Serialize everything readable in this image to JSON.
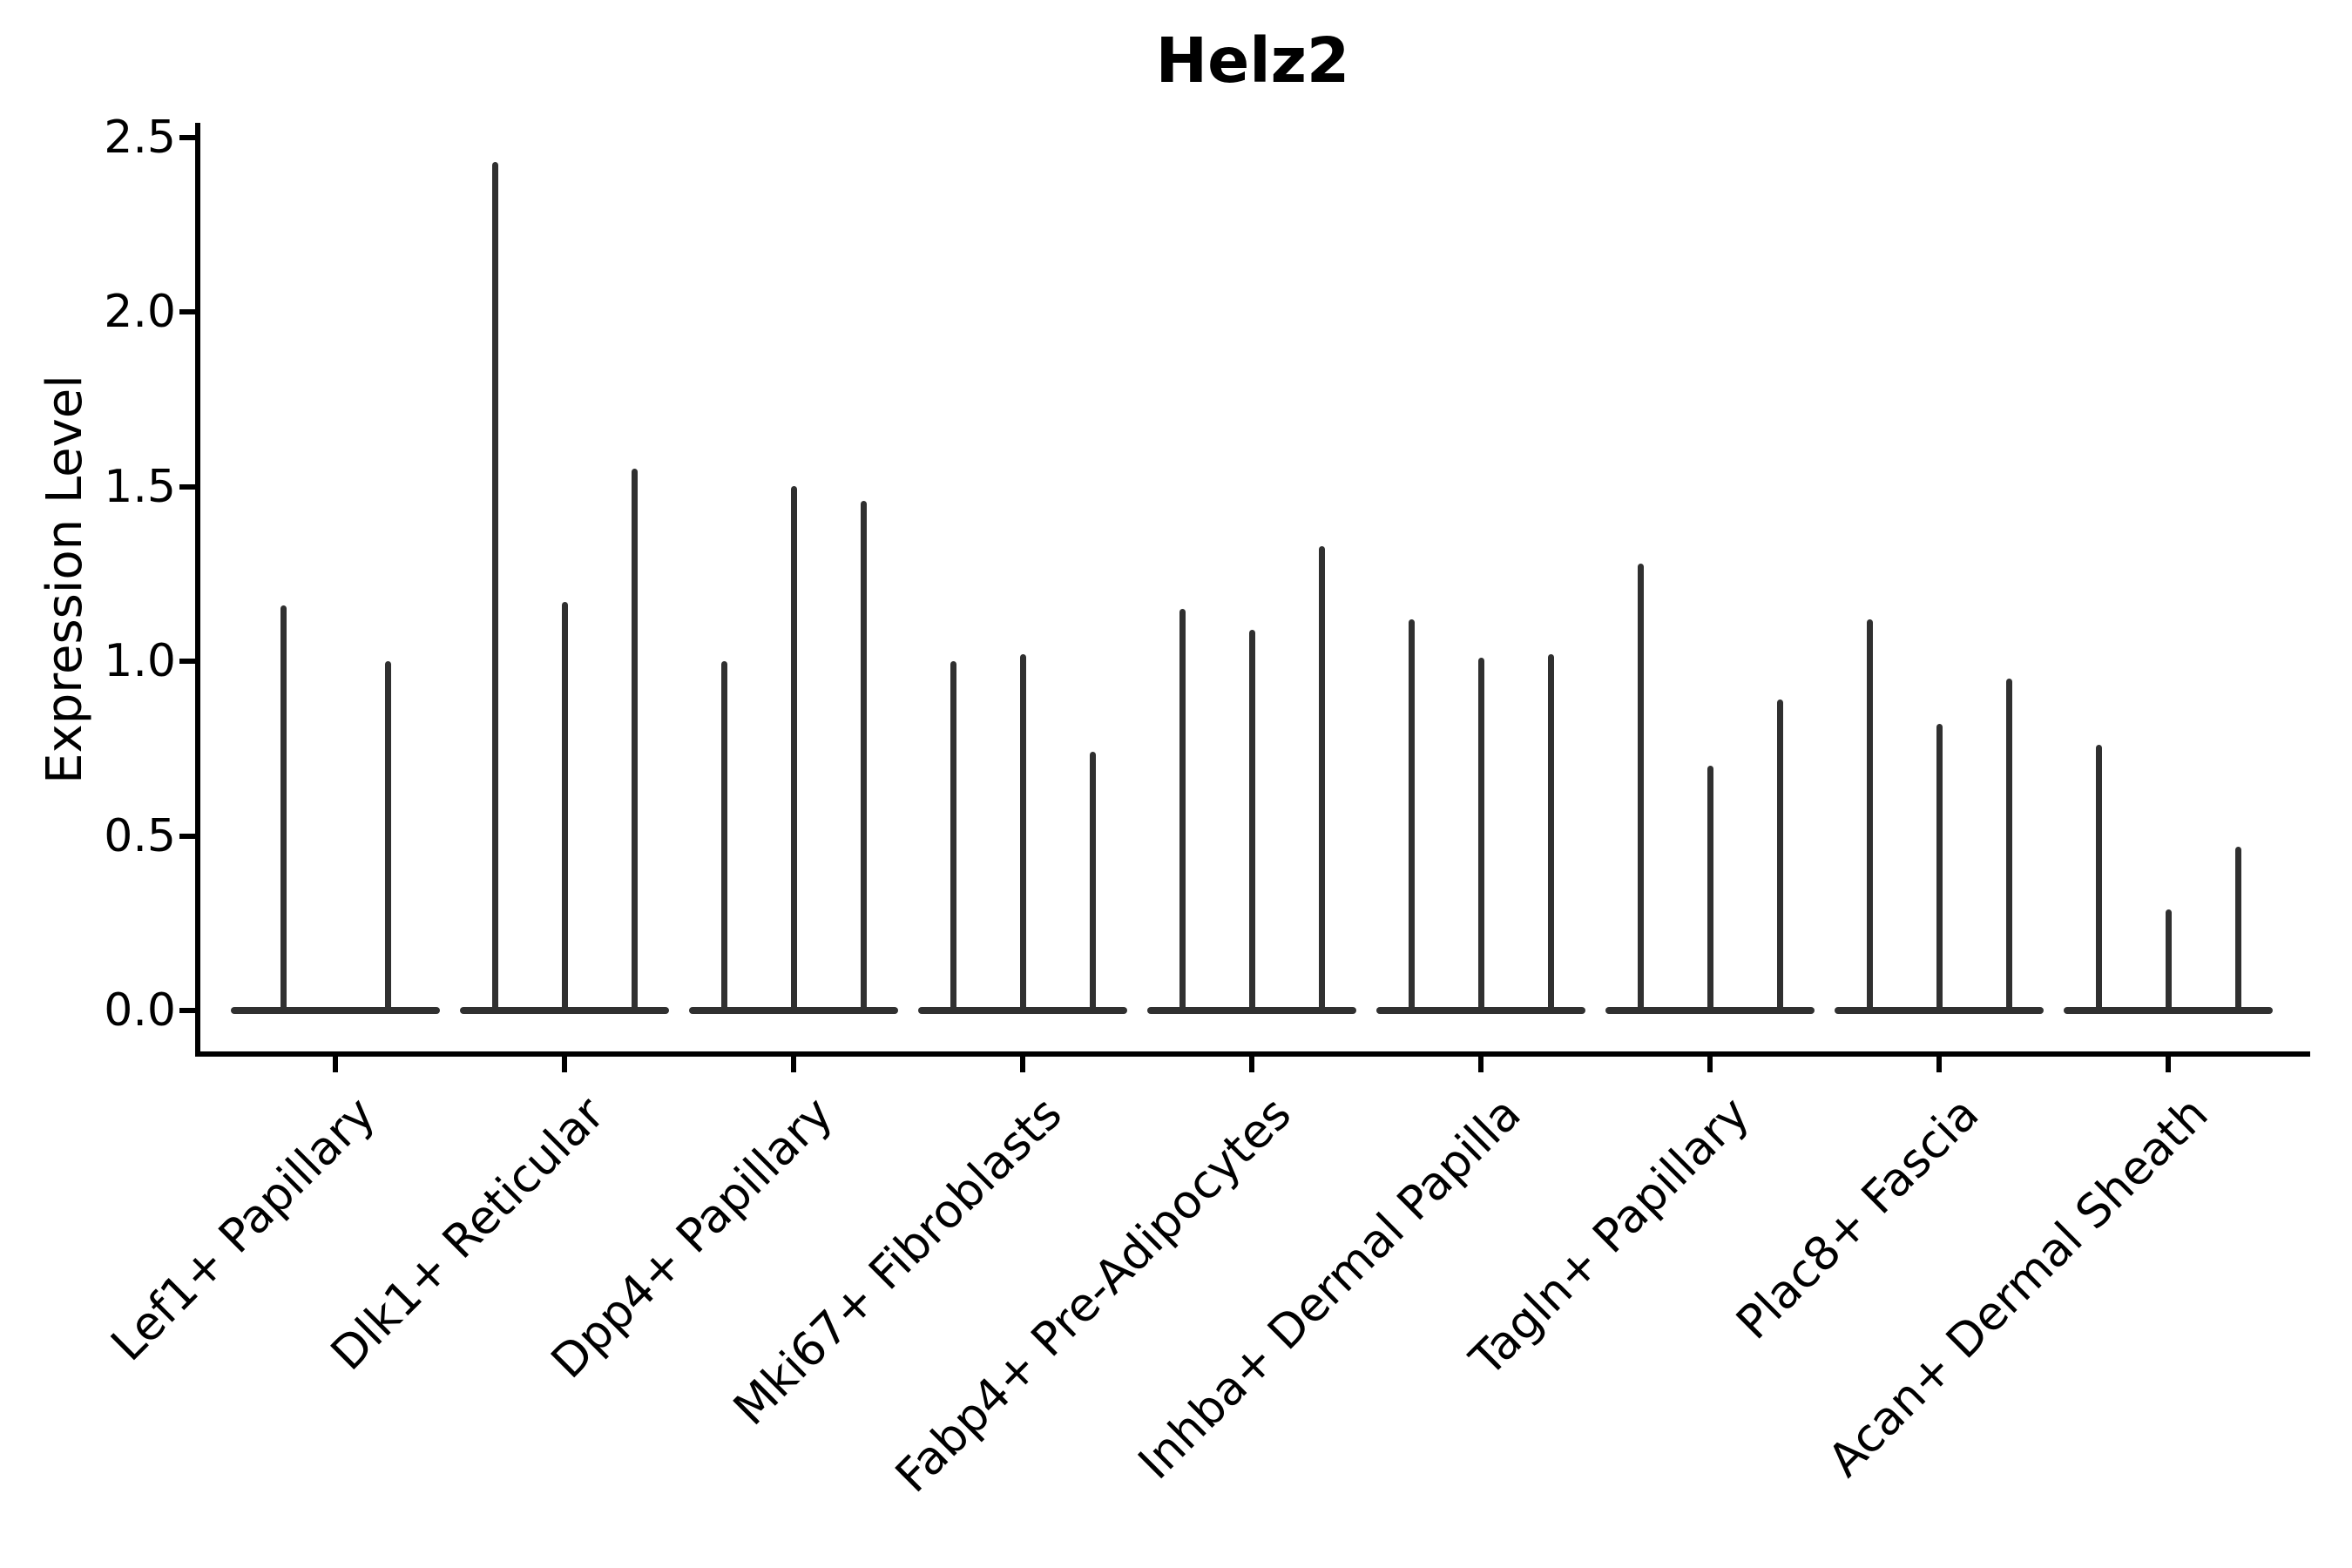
{
  "title": "Helz2",
  "y_axis": {
    "label": "Expression Level",
    "ticks": [
      "0.0",
      "0.5",
      "1.0",
      "1.5",
      "2.0",
      "2.5"
    ]
  },
  "colors": {
    "violin": "#303030",
    "axis": "#000000",
    "text": "#000000",
    "background": "#ffffff"
  },
  "chart_data": {
    "type": "violin",
    "title": "Helz2",
    "xlabel": "",
    "ylabel": "Expression Level",
    "ylim": [
      0,
      2.54
    ],
    "yticks": [
      0.0,
      0.5,
      1.0,
      1.5,
      2.0,
      2.5
    ],
    "grid": false,
    "legend": "none",
    "style": "collapsed thin violins (vertical spikes) rising from a flat base segment at 0; grouped violins per category (2 violins in first category, 3 in all others); dark gray marks on white, black axes, x labels rotated 45 degrees",
    "categories": [
      "Lef1+ Papillary",
      "Dlk1+ Reticular",
      "Dpp4+ Papillary",
      "Mki67+ Fibroblasts",
      "Fabp4+ Pre-Adipocytes",
      "Inhba+ Dermal Papilla",
      "Tagln+ Papillary",
      "Plac8+ Fascia",
      "Acan+ Dermal Sheath"
    ],
    "series": [
      {
        "category": "Lef1+ Papillary",
        "violin_peaks": [
          1.16,
          1.0
        ]
      },
      {
        "category": "Dlk1+ Reticular",
        "violin_peaks": [
          2.43,
          1.17,
          1.55
        ]
      },
      {
        "category": "Dpp4+ Papillary",
        "violin_peaks": [
          1.0,
          1.5,
          1.46
        ]
      },
      {
        "category": "Mki67+ Fibroblasts",
        "violin_peaks": [
          1.0,
          1.02,
          0.74
        ]
      },
      {
        "category": "Fabp4+ Pre-Adipocytes",
        "violin_peaks": [
          1.15,
          1.09,
          1.33
        ]
      },
      {
        "category": "Inhba+ Dermal Papilla",
        "violin_peaks": [
          1.12,
          1.01,
          1.02
        ]
      },
      {
        "category": "Tagln+ Papillary",
        "violin_peaks": [
          1.28,
          0.7,
          0.89
        ]
      },
      {
        "category": "Plac8+ Fascia",
        "violin_peaks": [
          1.12,
          0.82,
          0.95
        ]
      },
      {
        "category": "Acan+ Dermal Sheath",
        "violin_peaks": [
          0.76,
          0.29,
          0.47
        ]
      }
    ]
  }
}
